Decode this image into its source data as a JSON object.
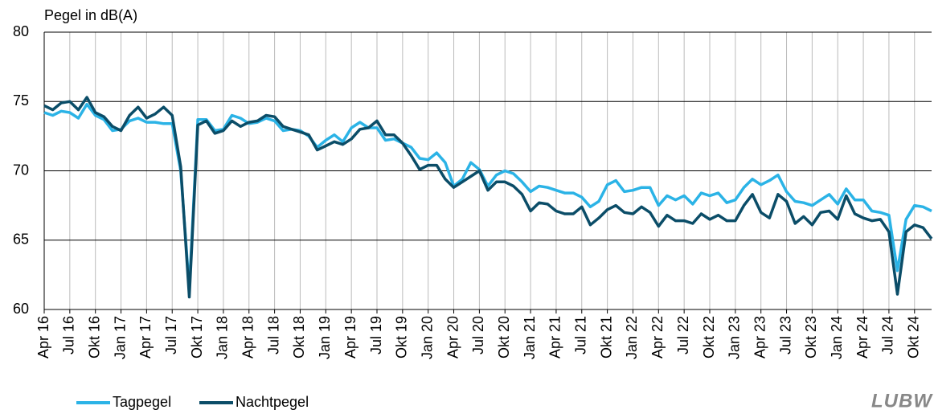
{
  "chart_data": {
    "type": "line",
    "y_label": "Pegel in dB(A)",
    "categories": [
      "Apr 16",
      null,
      null,
      "Jul 16",
      null,
      null,
      "Okt 16",
      null,
      null,
      "Jan 17",
      null,
      null,
      "Apr 17",
      null,
      null,
      "Jul 17",
      null,
      null,
      "Okt 17",
      null,
      null,
      "Jan 18",
      null,
      null,
      "Apr 18",
      null,
      null,
      "Jul 18",
      null,
      null,
      "Okt 18",
      null,
      null,
      "Jan 19",
      null,
      null,
      "Apr 19",
      null,
      null,
      "Jul 19",
      null,
      null,
      "Okt 19",
      null,
      null,
      "Jan 20",
      null,
      null,
      "Apr 20",
      null,
      null,
      "Jul 20",
      null,
      null,
      "Okt 20",
      null,
      null,
      "Jan 21",
      null,
      null,
      "Apr 21",
      null,
      null,
      "Jul 21",
      null,
      null,
      "Okt 21",
      null,
      null,
      "Jan 22",
      null,
      null,
      "Apr 22",
      null,
      null,
      "Jul 22",
      null,
      null,
      "Okt 22",
      null,
      null,
      "Jan 23",
      null,
      null,
      "Apr 23",
      null,
      null,
      "Jul 23",
      null,
      null,
      "Okt 23",
      null,
      null,
      "Jan 24",
      null,
      null,
      "Apr 24",
      null,
      null,
      "Jul 24",
      null,
      null,
      "Okt 24",
      null,
      null
    ],
    "series": [
      {
        "name": "Tagpegel",
        "color": "#2bb3e6",
        "values": [
          74.2,
          74.0,
          74.3,
          74.2,
          73.8,
          74.8,
          74.0,
          73.7,
          72.9,
          73.0,
          73.6,
          73.8,
          73.5,
          73.5,
          73.4,
          73.4,
          70.0,
          61.5,
          73.7,
          73.7,
          72.9,
          73.0,
          74.0,
          73.8,
          73.4,
          73.5,
          73.8,
          73.6,
          72.9,
          73.0,
          72.9,
          72.5,
          71.7,
          72.2,
          72.6,
          72.1,
          73.1,
          73.5,
          73.1,
          73.1,
          72.2,
          72.3,
          72.0,
          71.7,
          70.9,
          70.8,
          71.3,
          70.6,
          68.9,
          69.4,
          70.6,
          70.1,
          68.9,
          69.7,
          70.0,
          69.8,
          69.2,
          68.5,
          68.9,
          68.8,
          68.6,
          68.4,
          68.4,
          68.1,
          67.4,
          67.8,
          69.0,
          69.3,
          68.5,
          68.6,
          68.8,
          68.8,
          67.5,
          68.2,
          67.9,
          68.2,
          67.6,
          68.4,
          68.2,
          68.4,
          67.7,
          67.9,
          68.8,
          69.4,
          69.0,
          69.3,
          69.7,
          68.5,
          67.8,
          67.7,
          67.5,
          67.9,
          68.3,
          67.6,
          68.7,
          67.9,
          67.9,
          67.1,
          67.0,
          66.8,
          62.8,
          66.5,
          67.5,
          67.4,
          67.1
        ]
      },
      {
        "name": "Nachtpegel",
        "color": "#0b4d68",
        "values": [
          74.7,
          74.4,
          74.9,
          75.0,
          74.4,
          75.3,
          74.2,
          73.9,
          73.2,
          72.9,
          74.0,
          74.6,
          73.8,
          74.1,
          74.6,
          74.0,
          70.3,
          60.9,
          73.3,
          73.6,
          72.7,
          72.9,
          73.6,
          73.2,
          73.5,
          73.6,
          74.0,
          73.9,
          73.2,
          73.0,
          72.8,
          72.6,
          71.5,
          71.8,
          72.1,
          71.9,
          72.3,
          73.0,
          73.1,
          73.6,
          72.6,
          72.6,
          72.0,
          71.1,
          70.1,
          70.4,
          70.4,
          69.4,
          68.8,
          69.2,
          69.6,
          70.0,
          68.6,
          69.2,
          69.2,
          68.9,
          68.3,
          67.1,
          67.7,
          67.6,
          67.1,
          66.9,
          66.9,
          67.4,
          66.1,
          66.6,
          67.2,
          67.5,
          67.0,
          66.9,
          67.4,
          67.0,
          66.0,
          66.8,
          66.4,
          66.4,
          66.2,
          66.9,
          66.5,
          66.8,
          66.4,
          66.4,
          67.5,
          68.3,
          67.0,
          66.6,
          68.3,
          67.8,
          66.2,
          66.7,
          66.1,
          67.0,
          67.1,
          66.5,
          68.2,
          66.9,
          66.6,
          66.4,
          66.5,
          65.6,
          61.1,
          65.6,
          66.1,
          65.9,
          65.1
        ]
      }
    ],
    "ylim": [
      60,
      80
    ],
    "yticks": [
      60,
      65,
      70,
      75,
      80
    ],
    "grid": true
  },
  "logo": "LUBW"
}
